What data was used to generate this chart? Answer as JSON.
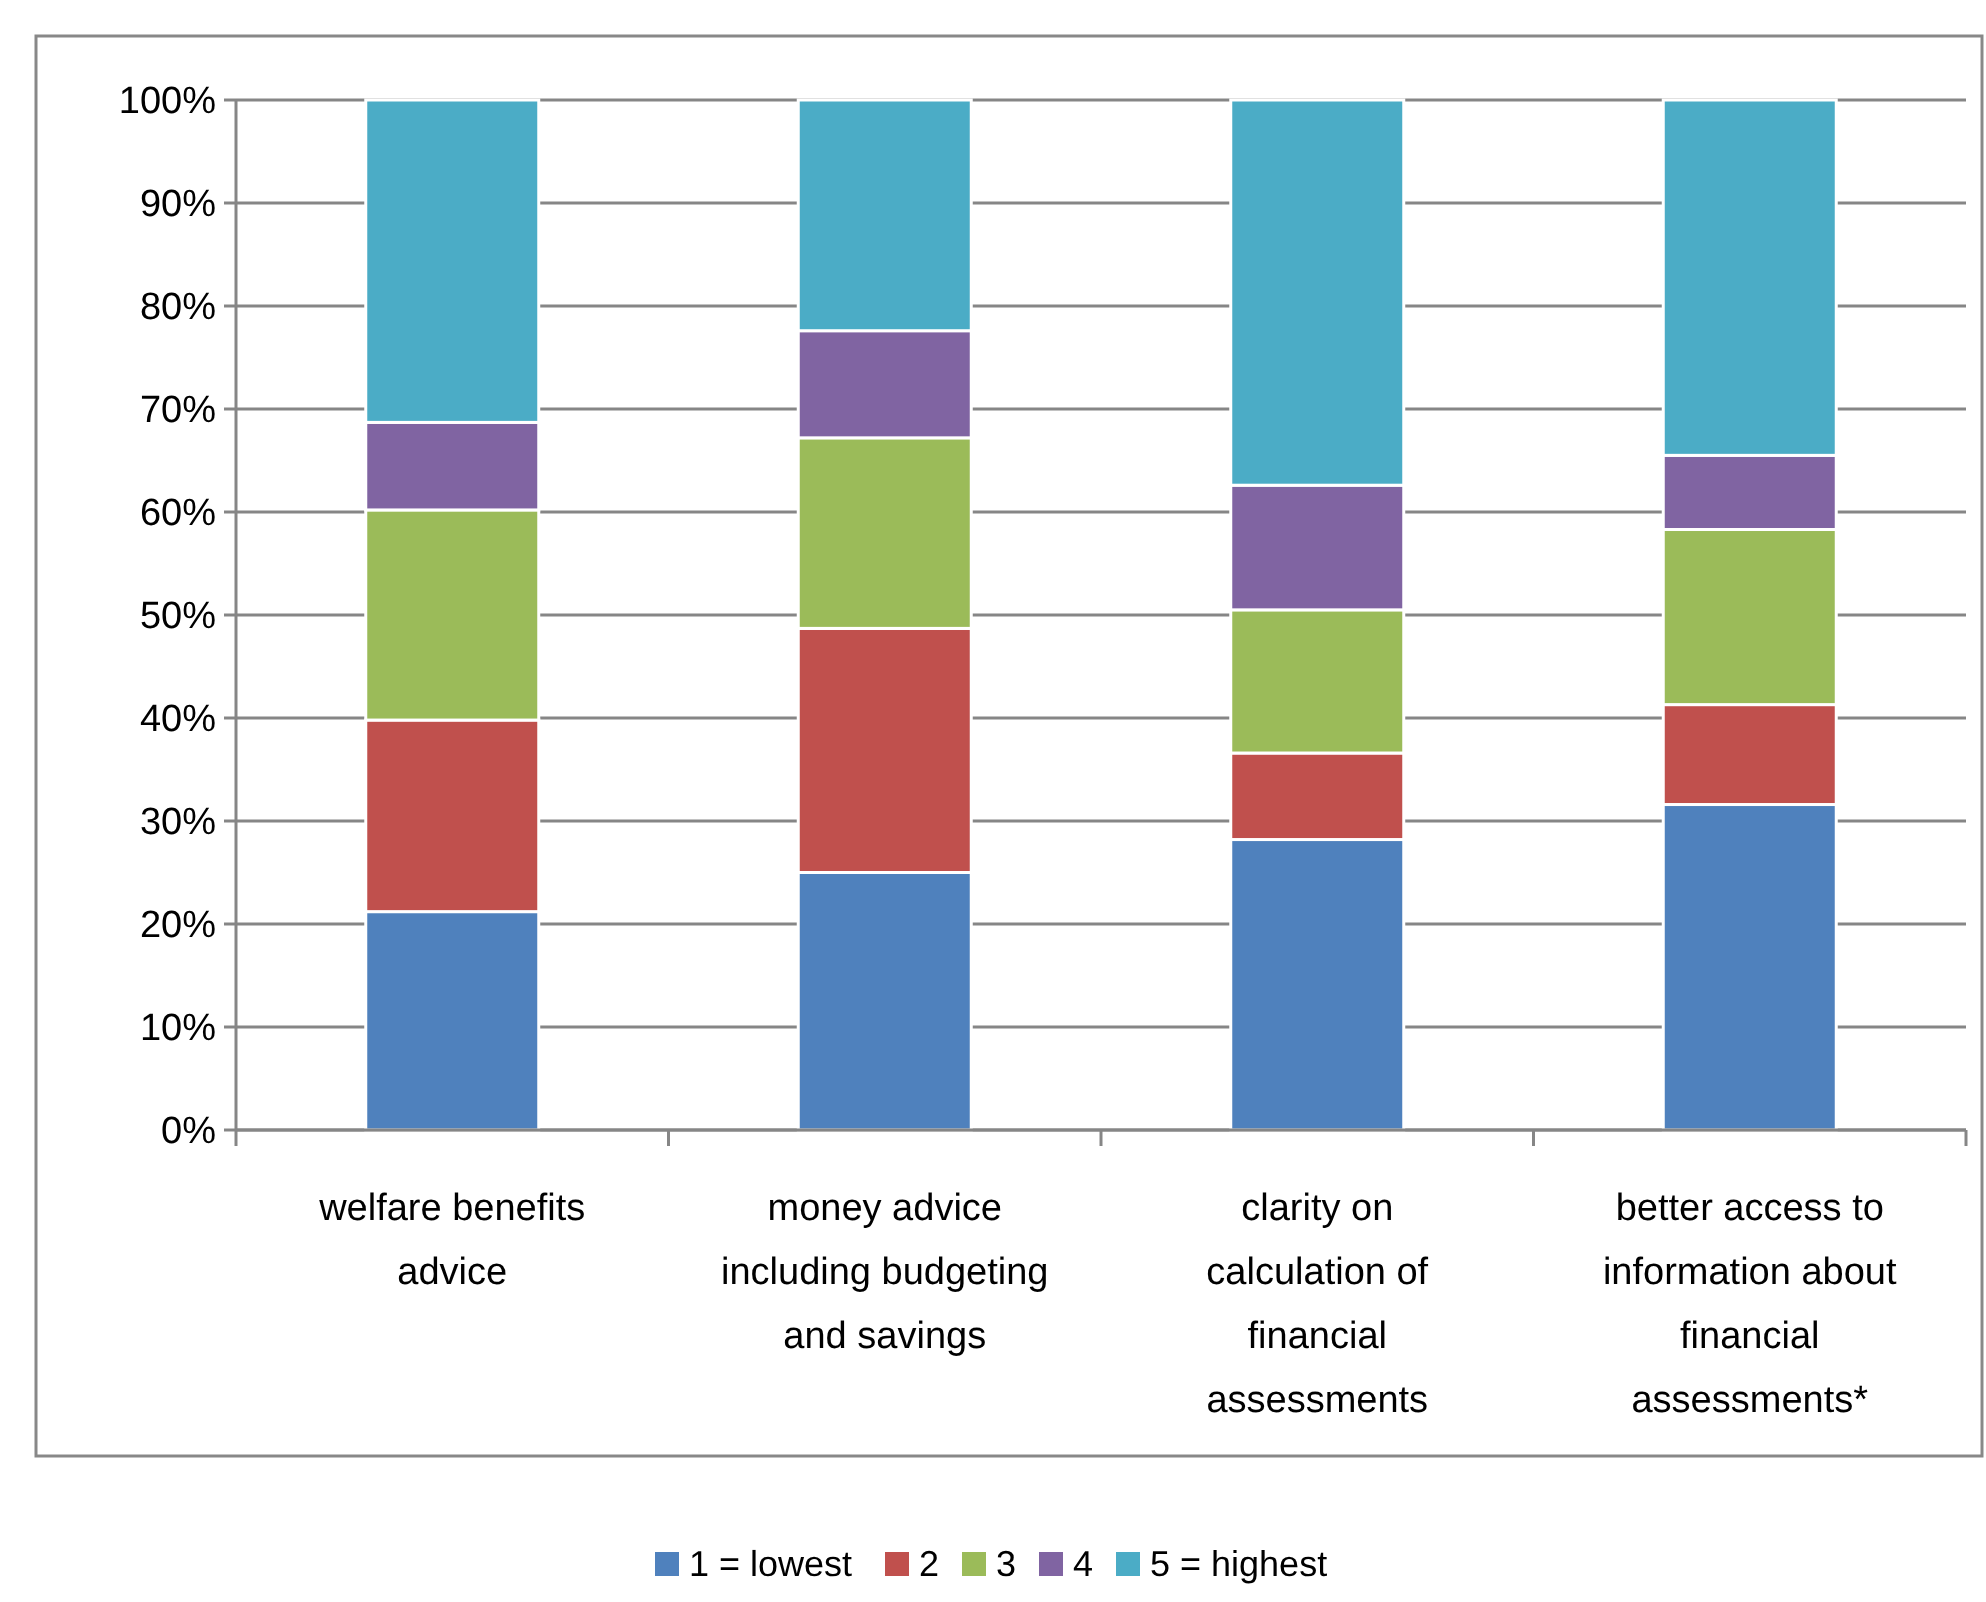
{
  "chart_data": {
    "type": "bar",
    "stacked": true,
    "categories": [
      "welfare benefits advice",
      "money advice including budgeting and savings",
      "clarity on calculation of financial assessments",
      "better access to information about financial assessments*"
    ],
    "series": [
      {
        "name": "1 = lowest",
        "color": "#4f81bd",
        "values": [
          21.2,
          25.0,
          28.2,
          31.6
        ]
      },
      {
        "name": "2",
        "color": "#c0504d",
        "values": [
          18.6,
          23.7,
          8.4,
          9.7
        ]
      },
      {
        "name": "3",
        "color": "#9bbb59",
        "values": [
          20.4,
          18.5,
          13.9,
          17.0
        ]
      },
      {
        "name": "4",
        "color": "#8064a2",
        "values": [
          8.5,
          10.4,
          12.1,
          7.2
        ]
      },
      {
        "name": "5 = highest",
        "color": "#4bacc6",
        "values": [
          31.3,
          22.4,
          37.4,
          34.5
        ]
      }
    ],
    "ylim": [
      0,
      100
    ],
    "yticks": [
      {
        "value": 0,
        "label": "0%"
      },
      {
        "value": 10,
        "label": "10%"
      },
      {
        "value": 20,
        "label": "20%"
      },
      {
        "value": 30,
        "label": "30%"
      },
      {
        "value": 40,
        "label": "40%"
      },
      {
        "value": 50,
        "label": "50%"
      },
      {
        "value": 60,
        "label": "60%"
      },
      {
        "value": 70,
        "label": "70%"
      },
      {
        "value": 80,
        "label": "80%"
      },
      {
        "value": 90,
        "label": "90%"
      },
      {
        "value": 100,
        "label": "100%"
      }
    ],
    "grid": "y",
    "legend": "bottom"
  }
}
